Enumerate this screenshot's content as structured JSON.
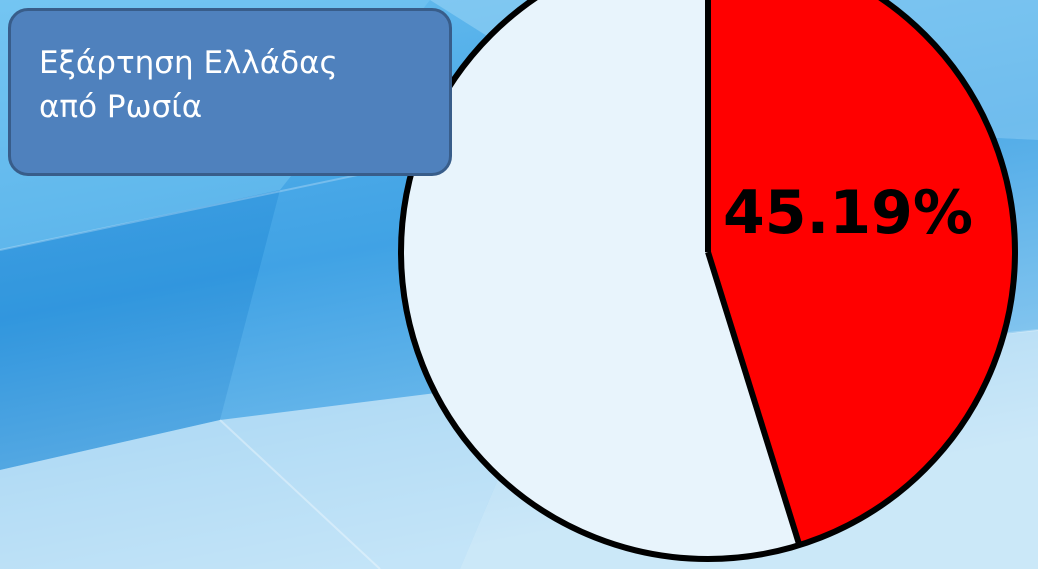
{
  "title_lines": [
    "Εξάρτηση Ελλάδας",
    "από Ρωσία"
  ],
  "chart_data": {
    "type": "pie",
    "title": "Εξάρτηση Ελλάδας από Ρωσία",
    "slices": [
      {
        "label": "45.19%",
        "value": 45.19,
        "color": "#ff0000"
      },
      {
        "label": "",
        "value": 54.81,
        "color": "#e8f4fc"
      }
    ],
    "value_unit": "%",
    "start_angle_deg": 0,
    "direction": "clockwise",
    "data_labels": [
      "45.19%"
    ]
  },
  "colors": {
    "background_light": "#bfe3f7",
    "background_mid": "#5bb3ec",
    "background_dark": "#2d8fd8",
    "title_box_fill": "#4f81bd",
    "title_box_border": "#385d8a",
    "slice_outline": "#000000"
  }
}
